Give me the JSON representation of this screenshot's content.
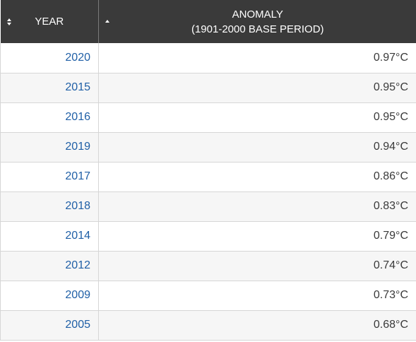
{
  "table": {
    "columns": [
      {
        "label_lines": [
          "YEAR"
        ],
        "sort_icon": "sort-both-icon"
      },
      {
        "label_lines": [
          "ANOMALY",
          "(1901-2000 BASE PERIOD)"
        ],
        "sort_icon": "sort-asc-icon"
      }
    ],
    "rows": [
      {
        "year": "2020",
        "anomaly": "0.97°C"
      },
      {
        "year": "2015",
        "anomaly": "0.95°C"
      },
      {
        "year": "2016",
        "anomaly": "0.95°C"
      },
      {
        "year": "2019",
        "anomaly": "0.94°C"
      },
      {
        "year": "2017",
        "anomaly": "0.86°C"
      },
      {
        "year": "2018",
        "anomaly": "0.83°C"
      },
      {
        "year": "2014",
        "anomaly": "0.79°C"
      },
      {
        "year": "2012",
        "anomaly": "0.74°C"
      },
      {
        "year": "2009",
        "anomaly": "0.73°C"
      },
      {
        "year": "2005",
        "anomaly": "0.68°C"
      }
    ]
  },
  "colors": {
    "header_bg": "#3a3a3a",
    "year_link": "#1f5fa6",
    "value_text": "#3a3a3a",
    "stripe": "#f6f6f6"
  }
}
